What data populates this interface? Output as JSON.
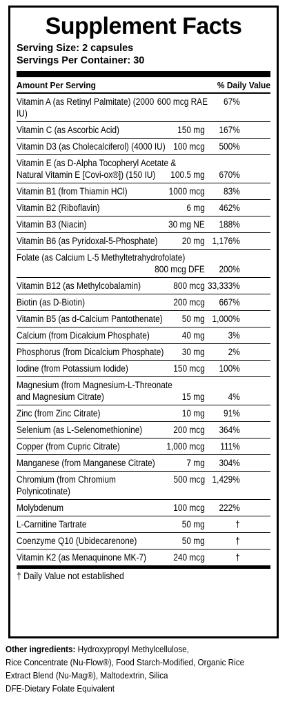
{
  "title": "Supplement Facts",
  "serving_size": "Serving Size: 2 capsules",
  "servings_per_container": "Servings Per Container: 30",
  "header": {
    "amount": "Amount Per Serving",
    "dv": "% Daily Value"
  },
  "rows": [
    {
      "name": "Vitamin A (as Retinyl Palmitate) (2000 IU)",
      "amount": "600 mcg RAE",
      "dv": "67%"
    },
    {
      "name": "Vitamin C (as Ascorbic Acid)",
      "amount": "150 mg",
      "dv": "167%"
    },
    {
      "name": "Vitamin D3 (as Cholecalciferol) (4000 IU)",
      "amount": "100 mcg",
      "dv": "500%"
    },
    {
      "line1": "Vitamin E (as D-Alpha Tocopheryl Acetate &",
      "name": "Natural Vitamin E [Covi-ox®]) (150 IU)",
      "amount": "100.5 mg",
      "dv": "670%"
    },
    {
      "name": "Vitamin B1 (from Thiamin HCl)",
      "amount": "1000 mcg",
      "dv": "83%"
    },
    {
      "name": "Vitamin B2 (Riboflavin)",
      "amount": "6 mg",
      "dv": "462%"
    },
    {
      "name": "Vitamin B3 (Niacin)",
      "amount": "30 mg NE",
      "dv": "188%"
    },
    {
      "name": "Vitamin B6 (as  Pyridoxal-5-Phosphate)",
      "amount": "20 mg",
      "dv": "1,176%"
    },
    {
      "line1": "Folate (as Calcium L-5 Methyltetrahydrofolate)",
      "name": "",
      "amount": "800 mcg  DFE",
      "dv": "200%"
    },
    {
      "name": "Vitamin B12 (as Methylcobalamin)",
      "amount": "800 mcg",
      "dv": "33,333%"
    },
    {
      "name": "Biotin (as D-Biotin)",
      "amount": "200 mcg",
      "dv": "667%"
    },
    {
      "name": "Vitamin B5 (as d-Calcium Pantothenate)",
      "amount": "50 mg",
      "dv": "1,000%"
    },
    {
      "name": "Calcium (from Dicalcium Phosphate)",
      "amount": "40 mg",
      "dv": "3%"
    },
    {
      "name": "Phosphorus (from Dicalcium Phosphate)",
      "amount": "30 mg",
      "dv": "2%"
    },
    {
      "name": "Iodine (from Potassium Iodide)",
      "amount": "150 mcg",
      "dv": "100%"
    },
    {
      "line1": "Magnesium (from Magnesium-L-Threonate",
      "name": "and Magnesium Citrate)",
      "amount": "15 mg",
      "dv": "4%"
    },
    {
      "name": "Zinc (from Zinc Citrate)",
      "amount": "10  mg",
      "dv": "91%"
    },
    {
      "name": "Selenium (as L-Selenomethionine)",
      "amount": "200 mcg",
      "dv": "364%"
    },
    {
      "name": "Copper (from Cupric Citrate)",
      "amount": "1,000 mcg",
      "dv": "111%"
    },
    {
      "name": "Manganese (from Manganese Citrate)",
      "amount": "7 mg",
      "dv": "304%"
    },
    {
      "name": "Chromium (from Chromium Polynicotinate)",
      "amount": "500 mcg",
      "dv": "1,429%"
    },
    {
      "name": "Molybdenum",
      "amount": "100 mcg",
      "dv": "222%"
    },
    {
      "name": "L-Carnitine Tartrate",
      "amount": "50 mg",
      "dv": "†"
    },
    {
      "name": "Coenzyme Q10 (Ubidecarenone)",
      "amount": "50 mg",
      "dv": "†"
    },
    {
      "name": "Vitamin K2 (as Menaquinone MK-7)",
      "amount": "240 mcg",
      "dv": "†"
    }
  ],
  "footnote": "† Daily Value not established",
  "other": {
    "label": "Other ingredients:",
    "line1": " Hydroxypropyl Methylcellulose,",
    "line2": "Rice Concentrate (Nu-Flow®), Food Starch-Modified, Organic Rice",
    "line3": "Extract Blend (Nu-Mag®), Maltodextrin, Silica",
    "line4": "DFE-Dietary Folate Equivalent"
  }
}
